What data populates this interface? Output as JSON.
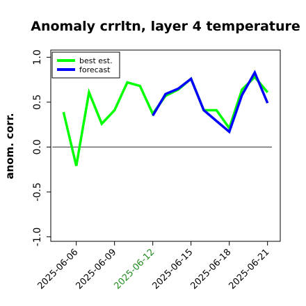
{
  "chart_data": {
    "type": "line",
    "title": "Anomaly crrltn, layer 4 temperature",
    "ylabel": "anom. corr.",
    "xlabel": "",
    "x": [
      "2025-06-05",
      "2025-06-06",
      "2025-06-07",
      "2025-06-08",
      "2025-06-09",
      "2025-06-10",
      "2025-06-11",
      "2025-06-12",
      "2025-06-13",
      "2025-06-14",
      "2025-06-15",
      "2025-06-16",
      "2025-06-17",
      "2025-06-18",
      "2025-06-19",
      "2025-06-20",
      "2025-06-21"
    ],
    "xtick_labels": [
      "2025-06-06",
      "2025-06-09",
      "2025-06-12",
      "2025-06-15",
      "2025-06-18",
      "2025-06-21"
    ],
    "xtick_colors": [
      "#000000",
      "#000000",
      "#228b22",
      "#000000",
      "#000000",
      "#000000"
    ],
    "yticks": [
      -1.0,
      -0.5,
      0.0,
      0.5,
      1.0
    ],
    "ytick_labels": [
      "-1.0",
      "-0.5",
      "0.0",
      "0.5",
      "1.0"
    ],
    "ylim": [
      -1.05,
      1.08
    ],
    "xlim": [
      "2025-06-04",
      "2025-06-22"
    ],
    "grid": false,
    "zero_line": true,
    "legend_position": "top-left",
    "series": [
      {
        "name": "best est.",
        "color": "#00ff00",
        "values": [
          0.39,
          -0.21,
          0.61,
          0.26,
          0.41,
          0.72,
          0.68,
          0.37,
          0.57,
          0.64,
          0.76,
          0.41,
          0.41,
          0.21,
          0.64,
          0.78,
          0.61
        ]
      },
      {
        "name": "forecast",
        "color": "#0000ff",
        "values": [
          null,
          null,
          null,
          null,
          null,
          null,
          null,
          0.35,
          0.59,
          0.65,
          0.76,
          0.41,
          0.29,
          0.17,
          0.58,
          0.83,
          0.49
        ]
      }
    ]
  }
}
